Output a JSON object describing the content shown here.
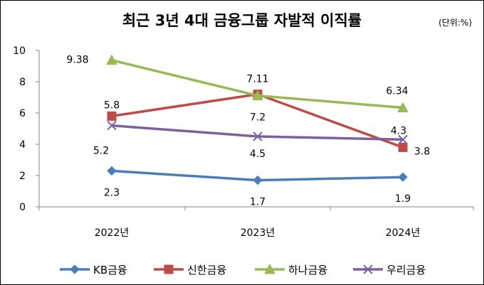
{
  "chart_data": {
    "type": "line",
    "title": "최근 3년 4대 금융그룹 자발적 이직률",
    "unit": "(단위:%)",
    "categories": [
      "2022년",
      "2023년",
      "2024년"
    ],
    "ylim": [
      0,
      10
    ],
    "yticks": [
      "0",
      "2",
      "4",
      "6",
      "8",
      "10"
    ],
    "grid": false,
    "legend_position": "bottom",
    "series": [
      {
        "name": "KB금융",
        "values": [
          2.3,
          1.7,
          1.9
        ],
        "labels": [
          "2.3",
          "1.7",
          "1.9"
        ],
        "color": "#4A7EBB",
        "marker": "diamond"
      },
      {
        "name": "신한금융",
        "values": [
          5.8,
          7.2,
          3.8
        ],
        "labels": [
          "5.8",
          "7.2",
          "3.8"
        ],
        "color": "#BE4B48",
        "marker": "square"
      },
      {
        "name": "하나금융",
        "values": [
          9.38,
          7.11,
          6.34
        ],
        "labels": [
          "9.38",
          "7.11",
          "6.34"
        ],
        "color": "#98B954",
        "marker": "triangle"
      },
      {
        "name": "우리금융",
        "values": [
          5.2,
          4.5,
          4.3
        ],
        "labels": [
          "5.2",
          "4.5",
          "4.3"
        ],
        "color": "#7D60A0",
        "marker": "x"
      }
    ]
  }
}
